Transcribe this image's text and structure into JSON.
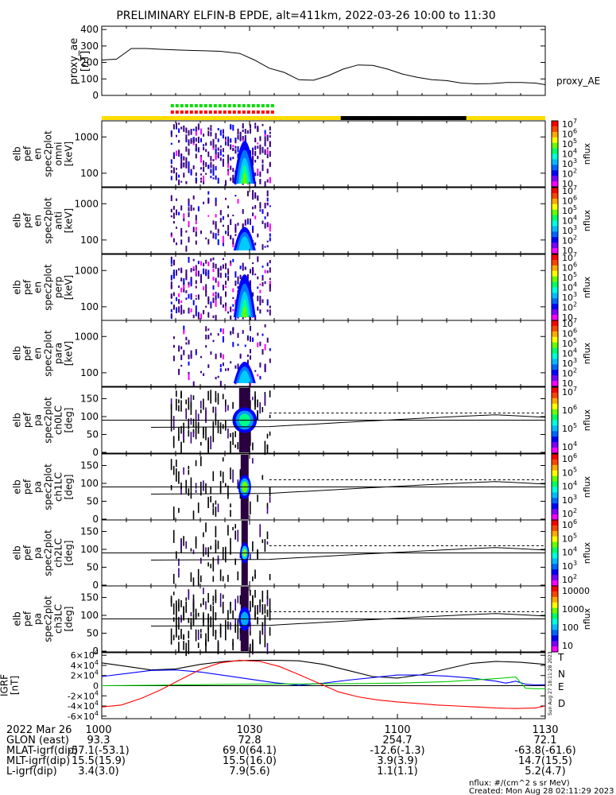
{
  "chart_data": {
    "type": "line",
    "title": "PRELIMINARY ELFIN-B EPDE, alt=411km, 2022-03-26 10:00 to 11:30",
    "time_axis": {
      "ticks": [
        "1000",
        "1030",
        "1100",
        "1130"
      ],
      "tick_minutes": [
        0,
        30,
        60,
        90
      ]
    },
    "proxy_ae": {
      "ylabel": "proxy_ae\n[nT]",
      "legend": "proxy_AE",
      "yticks": [
        "0",
        "100",
        "200",
        "300",
        "400"
      ],
      "ylim": [
        0,
        420
      ],
      "x": [
        0,
        3,
        6,
        9,
        12,
        16,
        20,
        24,
        28,
        31,
        34,
        37,
        40,
        43,
        46,
        49,
        52,
        55,
        58,
        61,
        64,
        67,
        70,
        73,
        76,
        79,
        82,
        85,
        88,
        90
      ],
      "y": [
        215,
        220,
        285,
        285,
        280,
        275,
        272,
        268,
        255,
        215,
        165,
        140,
        95,
        92,
        120,
        160,
        185,
        182,
        160,
        130,
        110,
        95,
        90,
        75,
        70,
        72,
        78,
        78,
        75,
        65
      ]
    },
    "bars": [
      {
        "name": "green-flags",
        "color": "#00dd00",
        "start": 14,
        "end": 34.5
      },
      {
        "name": "red-flags",
        "color": "#ff0000",
        "start": 14,
        "end": 34.5
      }
    ],
    "status_bar": [
      {
        "start": 0,
        "end": 48.5,
        "color": "#ffdd00"
      },
      {
        "start": 48.5,
        "end": 74,
        "color": "#000000"
      },
      {
        "start": 74,
        "end": 90,
        "color": "#ffdd00"
      }
    ],
    "energy_panels": [
      {
        "label": "elb\npef\nen\nspec2plot\nomni\n[keV]",
        "cbar_ticks": [
          "10",
          "10^2",
          "10^3",
          "10^4",
          "10^5",
          "10^6",
          "10^7"
        ],
        "cbar_label": "nflux"
      },
      {
        "label": "elb\npef\nen\nspec2plot\nanti\n[keV]",
        "cbar_ticks": [
          "10",
          "10^2",
          "10^3",
          "10^4",
          "10^5",
          "10^6",
          "10^7"
        ],
        "cbar_label": "nflux"
      },
      {
        "label": "elb\npef\nen\nspec2plot\nperp\n[keV]",
        "cbar_ticks": [
          "10",
          "10^2",
          "10^3",
          "10^4",
          "10^5",
          "10^6",
          "10^7"
        ],
        "cbar_label": "nflux"
      },
      {
        "label": "elb\npef\nen\nspec2plot\npara\n[keV]",
        "cbar_ticks": [
          "10",
          "10^2",
          "10^3",
          "10^4",
          "10^5",
          "10^6",
          "10^7"
        ],
        "cbar_label": "nflux"
      }
    ],
    "energy_yticks": [
      "100",
      "1000"
    ],
    "pa_panels": [
      {
        "label": "elb\npef\npa\nspec2plot\nch0LC\n[deg]",
        "cbar_ticks": [
          "10^4",
          "10^5",
          "10^6",
          "10^7"
        ],
        "cbar_label": "nflux"
      },
      {
        "label": "elb\npef\npa\nspec2plot\nch1LC\n[deg]",
        "cbar_ticks": [
          "10^2",
          "10^3",
          "10^4",
          "10^5",
          "10^6"
        ],
        "cbar_label": "nflux"
      },
      {
        "label": "elb\npef\npa\nspec2plot\nch2LC\n[deg]",
        "cbar_ticks": [
          "10^2",
          "10^3",
          "10^4",
          "10^5",
          "10^6"
        ],
        "cbar_label": "nflux"
      },
      {
        "label": "elb\npef\npa\nspec2plot\nch3LC\n[deg]",
        "cbar_ticks": [
          "10",
          "100",
          "1000",
          "10000"
        ],
        "cbar_label": "nflux"
      }
    ],
    "pa_yticks": [
      "0",
      "50",
      "100",
      "150"
    ],
    "igrf": {
      "ylabel": "IGRF\n[nT]",
      "yticks": [
        "-6x10^4",
        "-4x10^4",
        "-2x10^4",
        "0",
        "2x10^4",
        "4x10^4",
        "6x10^4"
      ],
      "ylim": [
        -65000,
        65000
      ],
      "series": [
        {
          "name": "T",
          "color": "#000000",
          "x": [
            0,
            5,
            10,
            15,
            20,
            25,
            30,
            35,
            40,
            45,
            50,
            55,
            60,
            65,
            70,
            75,
            80,
            85,
            90
          ],
          "y": [
            45000,
            38000,
            31000,
            33000,
            42000,
            48000,
            50000,
            50000,
            49000,
            42000,
            30000,
            18000,
            15000,
            22000,
            33000,
            44000,
            48000,
            46000,
            42000
          ]
        },
        {
          "name": "N",
          "color": "#0000ff",
          "x": [
            0,
            5,
            10,
            15,
            20,
            25,
            30,
            35,
            40,
            45,
            50,
            55,
            60,
            65,
            70,
            75,
            80,
            82,
            84,
            86,
            88,
            90
          ],
          "y": [
            18000,
            24000,
            30000,
            31000,
            27000,
            20000,
            13000,
            6000,
            1000,
            5000,
            11000,
            16000,
            21000,
            21000,
            19000,
            15000,
            9000,
            5000,
            9000,
            3000,
            1500,
            2000
          ]
        },
        {
          "name": "E",
          "color": "#00cc00",
          "x": [
            0,
            10,
            20,
            30,
            40,
            50,
            60,
            70,
            80,
            84,
            86,
            88,
            90
          ],
          "y": [
            0,
            1000,
            2000,
            3000,
            3500,
            4000,
            5000,
            8000,
            14000,
            17000,
            -5000,
            -6000,
            -6000
          ]
        },
        {
          "name": "D",
          "color": "#ff0000",
          "x": [
            0,
            4,
            8,
            12,
            16,
            20,
            24,
            28,
            32,
            36,
            40,
            44,
            48,
            52,
            56,
            60,
            64,
            68,
            72,
            76,
            80,
            84,
            88,
            90
          ],
          "y": [
            -42000,
            -38000,
            -25000,
            -8000,
            12000,
            32000,
            45000,
            50000,
            48000,
            38000,
            22000,
            5000,
            -12000,
            -22000,
            -28000,
            -32000,
            -35000,
            -38000,
            -40000,
            -42000,
            -44000,
            -45000,
            -44000,
            -40000
          ]
        }
      ]
    },
    "footer": {
      "rows": [
        {
          "label": "2022 Mar 26",
          "values": [
            "1000",
            "1030",
            "1100",
            "1130"
          ]
        },
        {
          "label": "GLON (east)",
          "values": [
            "93.3",
            "72.8",
            "254.7",
            "72.1"
          ]
        },
        {
          "label": "MLAT-igrf(dip)",
          "values": [
            "-57.1(-53.1)",
            "69.0(64.1)",
            "-12.6(-1.3)",
            "-63.8(-61.6)"
          ]
        },
        {
          "label": "MLT-igrf(dip)",
          "values": [
            "15.5(15.9)",
            "15.5(16.0)",
            "3.9(3.9)",
            "14.7(15.5)"
          ]
        },
        {
          "label": "L-igrf(dip)",
          "values": [
            "3.4(3.0)",
            "7.9(5.6)",
            "1.1(1.1)",
            "5.2(4.7)"
          ]
        }
      ],
      "unit_note": "nflux: #/(cm^2 s sr MeV)",
      "created": "Created: Mon Aug 28 02:11:29 2023",
      "side_stamp": "Sun Aug 27 18:11:28 2023"
    }
  }
}
